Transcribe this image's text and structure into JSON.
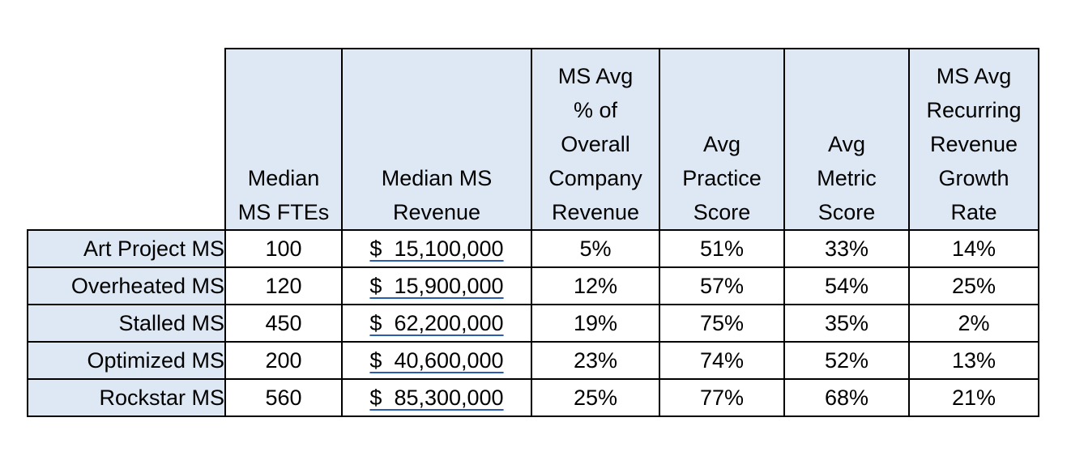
{
  "table": {
    "columns": [
      {
        "lines": [
          "Median",
          "MS FTEs"
        ]
      },
      {
        "lines": [
          "Median MS",
          "Revenue"
        ]
      },
      {
        "lines": [
          "MS Avg",
          "% of",
          "Overall",
          "Company",
          "Revenue"
        ]
      },
      {
        "lines": [
          "Avg",
          "Practice",
          "Score"
        ]
      },
      {
        "lines": [
          "Avg",
          "Metric",
          "Score"
        ]
      },
      {
        "lines": [
          "MS Avg",
          "Recurring",
          "Revenue",
          "Growth",
          "Rate"
        ]
      }
    ],
    "rows": [
      {
        "label": "Art Project MS",
        "cells": [
          "100",
          "$  15,100,000",
          "5%",
          "51%",
          "33%",
          "14%"
        ]
      },
      {
        "label": "Overheated MS",
        "cells": [
          "120",
          "$  15,900,000",
          "12%",
          "57%",
          "54%",
          "25%"
        ]
      },
      {
        "label": "Stalled MS",
        "cells": [
          "450",
          "$  62,200,000",
          "19%",
          "75%",
          "35%",
          "2%"
        ]
      },
      {
        "label": "Optimized MS",
        "cells": [
          "200",
          "$  40,600,000",
          "23%",
          "74%",
          "52%",
          "13%"
        ]
      },
      {
        "label": "Rockstar MS",
        "cells": [
          "560",
          "$  85,300,000",
          "25%",
          "77%",
          "68%",
          "21%"
        ]
      }
    ]
  },
  "colors": {
    "header_fill": "#dde8f4",
    "border": "#000000",
    "underline": "#2a5db0"
  }
}
